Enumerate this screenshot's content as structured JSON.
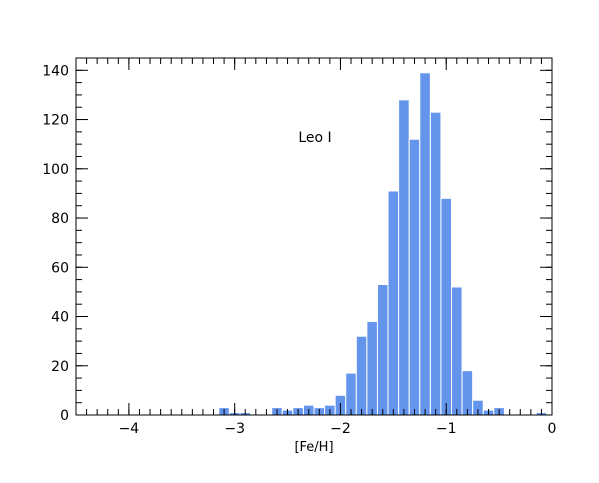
{
  "chart_data": {
    "type": "bar",
    "subtype": "histogram",
    "annotation": "Leo I",
    "xlabel": "[Fe/H]",
    "ylabel": "",
    "xlim": [
      -4.5,
      0
    ],
    "ylim": [
      0,
      145
    ],
    "x_ticks": [
      -4,
      -3,
      -2,
      -1,
      0
    ],
    "x_tick_labels": [
      "−4",
      "−3",
      "−2",
      "−1",
      "0"
    ],
    "y_ticks": [
      0,
      20,
      40,
      60,
      80,
      100,
      120,
      140
    ],
    "y_tick_labels": [
      "0",
      "20",
      "40",
      "60",
      "80",
      "100",
      "120",
      "140"
    ],
    "grid": false,
    "bar_color": "#6495ed",
    "bar_edge_color": "#ffffff",
    "bins": [
      {
        "x0": -3.15,
        "x1": -3.05,
        "count": 3
      },
      {
        "x0": -3.05,
        "x1": -2.95,
        "count": 1
      },
      {
        "x0": -2.95,
        "x1": -2.85,
        "count": 1
      },
      {
        "x0": -2.65,
        "x1": -2.55,
        "count": 3
      },
      {
        "x0": -2.55,
        "x1": -2.45,
        "count": 2
      },
      {
        "x0": -2.45,
        "x1": -2.35,
        "count": 3
      },
      {
        "x0": -2.35,
        "x1": -2.25,
        "count": 4
      },
      {
        "x0": -2.25,
        "x1": -2.15,
        "count": 3
      },
      {
        "x0": -2.15,
        "x1": -2.05,
        "count": 4
      },
      {
        "x0": -2.05,
        "x1": -1.95,
        "count": 8
      },
      {
        "x0": -1.95,
        "x1": -1.85,
        "count": 17
      },
      {
        "x0": -1.85,
        "x1": -1.75,
        "count": 32
      },
      {
        "x0": -1.75,
        "x1": -1.65,
        "count": 38
      },
      {
        "x0": -1.65,
        "x1": -1.55,
        "count": 53
      },
      {
        "x0": -1.55,
        "x1": -1.45,
        "count": 91
      },
      {
        "x0": -1.45,
        "x1": -1.35,
        "count": 128
      },
      {
        "x0": -1.35,
        "x1": -1.25,
        "count": 112
      },
      {
        "x0": -1.25,
        "x1": -1.15,
        "count": 139
      },
      {
        "x0": -1.15,
        "x1": -1.05,
        "count": 123
      },
      {
        "x0": -1.05,
        "x1": -0.95,
        "count": 88
      },
      {
        "x0": -0.95,
        "x1": -0.85,
        "count": 52
      },
      {
        "x0": -0.85,
        "x1": -0.75,
        "count": 18
      },
      {
        "x0": -0.75,
        "x1": -0.65,
        "count": 6
      },
      {
        "x0": -0.65,
        "x1": -0.55,
        "count": 2
      },
      {
        "x0": -0.55,
        "x1": -0.45,
        "count": 3
      },
      {
        "x0": -0.15,
        "x1": -0.05,
        "count": 1
      }
    ]
  }
}
